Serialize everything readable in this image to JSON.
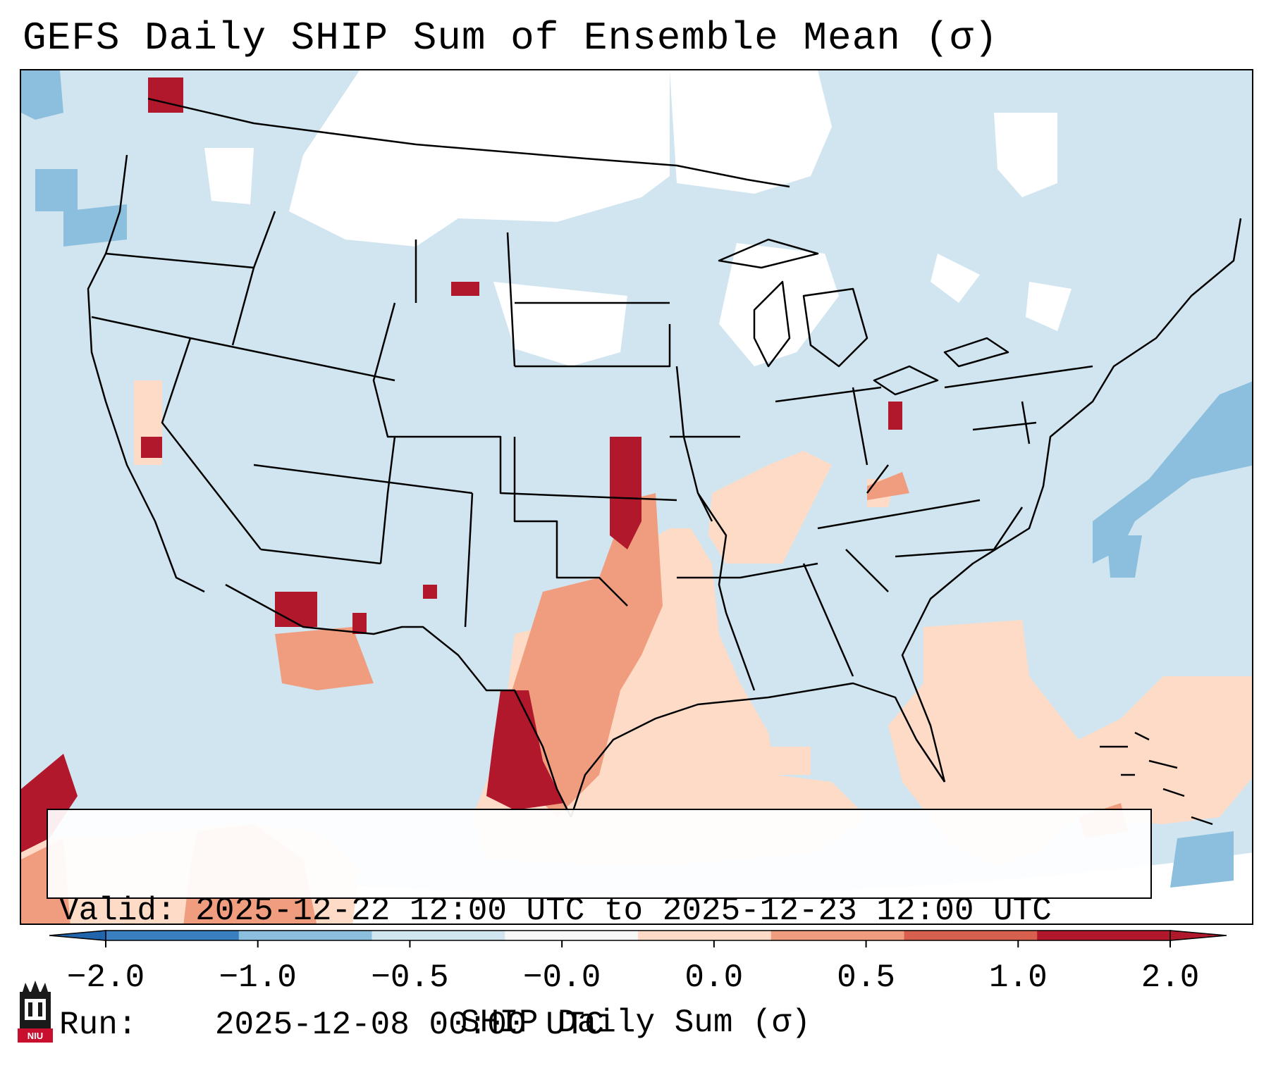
{
  "title": "GEFS Daily SHIP Sum of Ensemble Mean (σ)",
  "info": {
    "valid_label": "Valid:",
    "valid_value": "2025-12-22 12:00 UTC to 2025-12-23 12:00 UTC",
    "run_label": "Run:",
    "run_value": "2025-12-08 00:00 UTC"
  },
  "colorbar": {
    "label": "SHIP Daily Sum (σ)",
    "ticks": [
      "−2.0",
      "−1.0",
      "−0.5",
      "−0.0",
      "0.0",
      "0.5",
      "1.0",
      "2.0"
    ],
    "colors": [
      "#3a7fc0",
      "#8cbfde",
      "#d1e5f0",
      "#f7f7f7",
      "#fddbc7",
      "#f09d7f",
      "#d6604d",
      "#b2182b"
    ],
    "extend": "both"
  },
  "map": {
    "region": "Contiguous United States",
    "background_value_color": "#d1e5f0",
    "features": [
      "state-borders",
      "country-borders",
      "coastlines",
      "lakes"
    ]
  },
  "logo": {
    "text": "NIU"
  }
}
